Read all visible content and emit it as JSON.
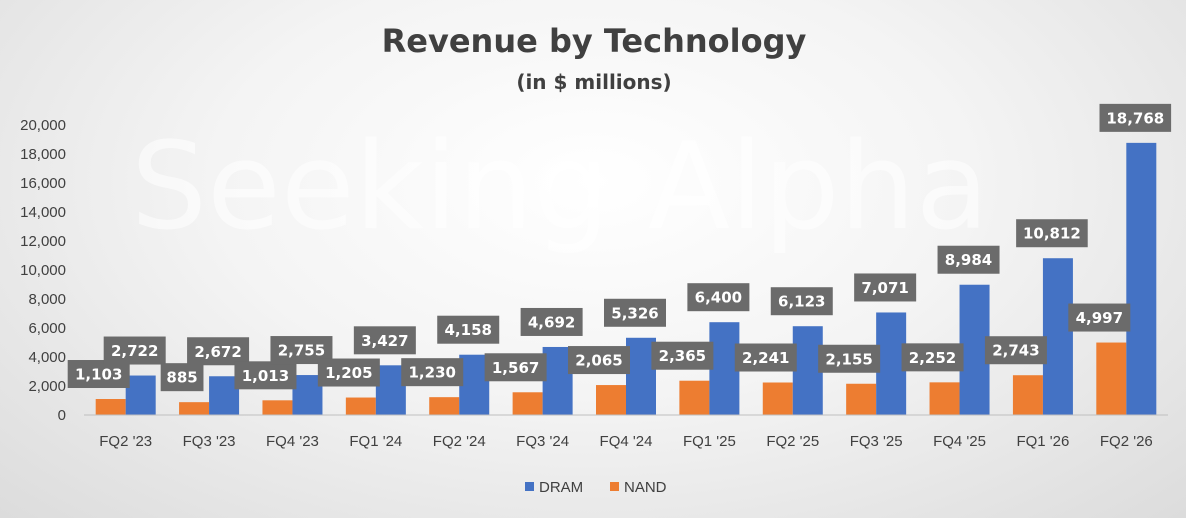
{
  "chart_data": {
    "type": "bar",
    "title": "Revenue by Technology",
    "subtitle": "(in $ millions)",
    "categories": [
      "FQ2 '23",
      "FQ3 '23",
      "FQ4 '23",
      "FQ1 '24",
      "FQ2 '24",
      "FQ3 '24",
      "FQ4 '24",
      "FQ1 '25",
      "FQ2 '25",
      "FQ3 '25",
      "FQ4 '25",
      "FQ1 '26",
      "FQ2 '26"
    ],
    "series": [
      {
        "name": "NAND",
        "color": "#ED7D31",
        "values": [
          1103,
          885,
          1013,
          1205,
          1230,
          1567,
          2065,
          2365,
          2241,
          2155,
          2252,
          2743,
          4997
        ],
        "labels": [
          "1,103",
          "885",
          "1,013",
          "1,205",
          "1,230",
          "1,567",
          "2,065",
          "2,365",
          "2,241",
          "2,155",
          "2,252",
          "2,743",
          "4,997"
        ]
      },
      {
        "name": "DRAM",
        "color": "#4472C4",
        "values": [
          2722,
          2672,
          2755,
          3427,
          4158,
          4692,
          5326,
          6400,
          6123,
          7071,
          8984,
          10812,
          18768
        ],
        "labels": [
          "2,722",
          "2,672",
          "2,755",
          "3,427",
          "4,158",
          "4,692",
          "5,326",
          "6,400",
          "6,123",
          "7,071",
          "8,984",
          "10,812",
          "18,768"
        ]
      }
    ],
    "ylim": [
      0,
      20000
    ],
    "yticks": [
      "0",
      "2,000",
      "4,000",
      "6,000",
      "8,000",
      "10,000",
      "12,000",
      "14,000",
      "16,000",
      "18,000",
      "20,000"
    ],
    "legend_position": "bottom",
    "legend": [
      "DRAM",
      "NAND"
    ],
    "label_box_color": "#6b6b6b",
    "xlabel": "",
    "ylabel": ""
  },
  "watermark": "Seeking Alpha"
}
